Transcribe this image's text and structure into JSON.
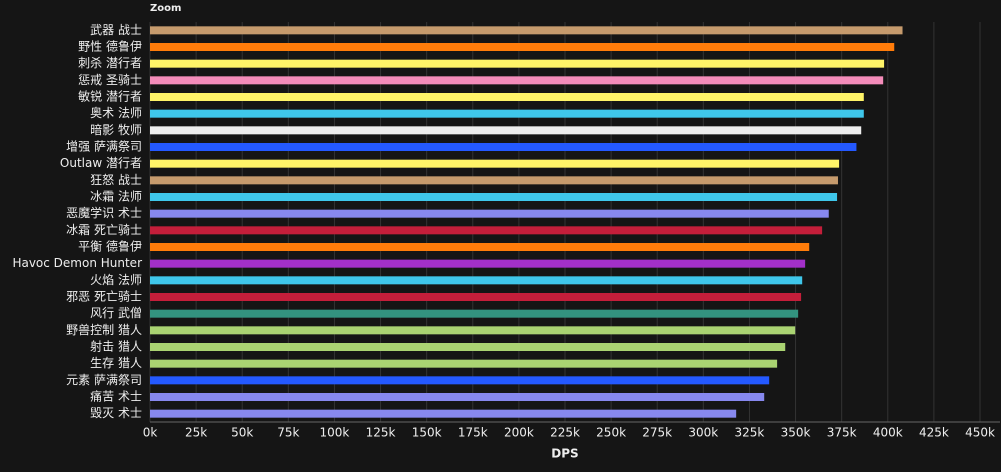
{
  "chart_data": {
    "type": "bar",
    "orientation": "horizontal",
    "subtitle": "Zoom",
    "x_label": "DPS",
    "categories": [
      "武器 战士",
      "野性 德鲁伊",
      "刺杀 潜行者",
      "惩戒 圣骑士",
      "敏锐 潜行者",
      "奥术 法师",
      "暗影 牧师",
      "增强 萨满祭司",
      "Outlaw 潜行者",
      "狂怒 战士",
      "冰霜 法师",
      "恶魔学识 术士",
      "冰霜 死亡骑士",
      "平衡 德鲁伊",
      "Havoc Demon Hunter",
      "火焰 法师",
      "邪恶 死亡骑士",
      "风行 武僧",
      "野兽控制 猎人",
      "射击 猎人",
      "生存 猎人",
      "元素 萨满祭司",
      "痛苦 术士",
      "毁灭 术士"
    ],
    "values": [
      408000,
      403500,
      398000,
      397500,
      387000,
      387000,
      385600,
      383000,
      373600,
      373000,
      372500,
      368000,
      364400,
      357400,
      355200,
      353600,
      353000,
      351400,
      349800,
      344400,
      340000,
      335700,
      333000,
      317800
    ],
    "colors": [
      "#c69b6d",
      "#ff7c0a",
      "#fff468",
      "#f48cba",
      "#fff468",
      "#3fc7eb",
      "#eeeeee",
      "#2459ff",
      "#fff468",
      "#c69b6d",
      "#3fc7eb",
      "#8788ee",
      "#c41e3a",
      "#ff7c0a",
      "#a330c9",
      "#3fc7eb",
      "#c41e3a",
      "#33937f",
      "#aad372",
      "#aad372",
      "#aad372",
      "#2459ff",
      "#8788ee",
      "#8788ee"
    ],
    "xlim": [
      0,
      450000
    ],
    "xticks": [
      {
        "value": 0,
        "label": "0k"
      },
      {
        "value": 25000,
        "label": "25k"
      },
      {
        "value": 50000,
        "label": "50k"
      },
      {
        "value": 75000,
        "label": "75k"
      },
      {
        "value": 100000,
        "label": "100k"
      },
      {
        "value": 125000,
        "label": "125k"
      },
      {
        "value": 150000,
        "label": "150k"
      },
      {
        "value": 175000,
        "label": "175k"
      },
      {
        "value": 200000,
        "label": "200k"
      },
      {
        "value": 225000,
        "label": "225k"
      },
      {
        "value": 250000,
        "label": "250k"
      },
      {
        "value": 275000,
        "label": "275k"
      },
      {
        "value": 300000,
        "label": "300k"
      },
      {
        "value": 325000,
        "label": "325k"
      },
      {
        "value": 350000,
        "label": "350k"
      },
      {
        "value": 375000,
        "label": "375k"
      },
      {
        "value": 400000,
        "label": "400k"
      },
      {
        "value": 425000,
        "label": "425k"
      },
      {
        "value": 450000,
        "label": "450k"
      }
    ],
    "grid": true
  }
}
